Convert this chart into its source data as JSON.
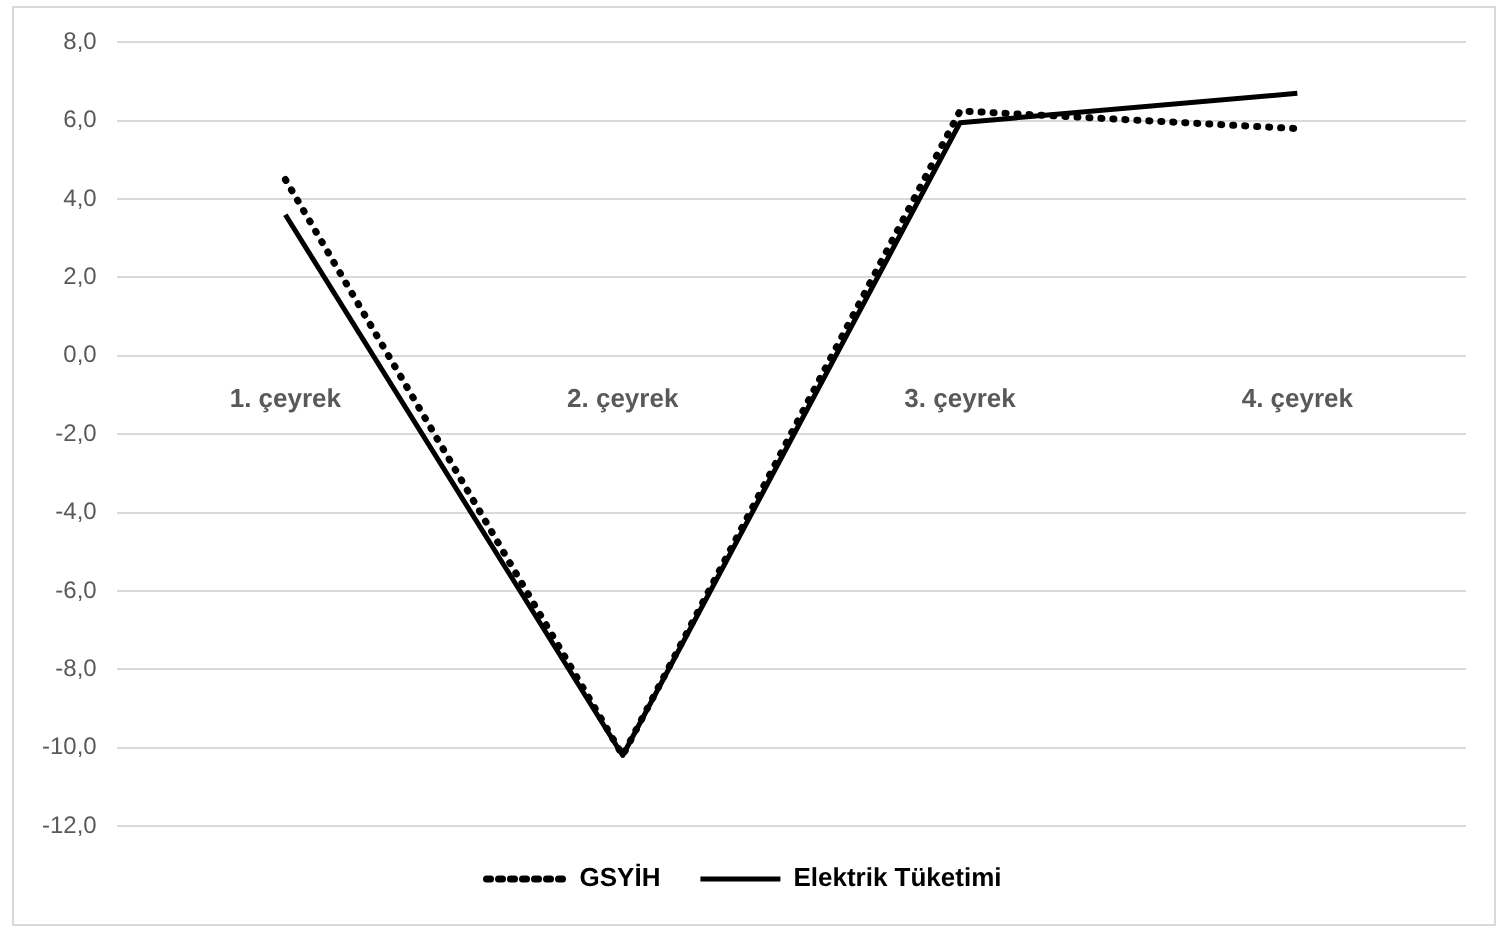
{
  "chart_data": {
    "type": "line",
    "categories": [
      "1. çeyrek",
      "2. çeyrek",
      "3. çeyrek",
      "4. çeyrek"
    ],
    "series": [
      {
        "name": "GSYİH",
        "color": "#000000",
        "line_style": "dotted",
        "values": [
          4.5,
          -10.2,
          6.25,
          5.8
        ]
      },
      {
        "name": "Elektrik Tüketimi",
        "color": "#000000",
        "line_style": "solid",
        "values": [
          3.6,
          -10.2,
          5.95,
          6.7
        ]
      }
    ],
    "ylim": [
      -12,
      8
    ],
    "yticks": [
      {
        "value": -12,
        "label": "-12,0"
      },
      {
        "value": -10,
        "label": "-10,0"
      },
      {
        "value": -8,
        "label": "-8,0"
      },
      {
        "value": -6,
        "label": "-6,0"
      },
      {
        "value": -4,
        "label": "-4,0"
      },
      {
        "value": -2,
        "label": "-2,0"
      },
      {
        "value": 0,
        "label": "0,0"
      },
      {
        "value": 2,
        "label": "2,0"
      },
      {
        "value": 4,
        "label": "4,0"
      },
      {
        "value": 6,
        "label": "6,0"
      },
      {
        "value": 8,
        "label": "8,0"
      }
    ],
    "grid": "y",
    "legend": "bottom",
    "marker": "none"
  }
}
